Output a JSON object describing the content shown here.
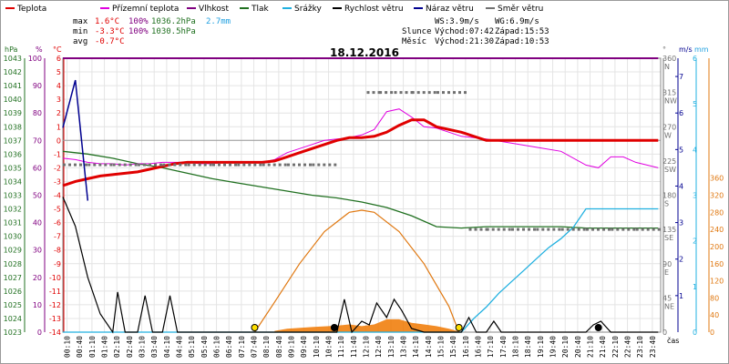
{
  "legend": [
    {
      "label": "Teplota",
      "color": "#e00000"
    },
    {
      "label": "Přízemní teplota",
      "color": "#e000e0"
    },
    {
      "label": "Vlhkost",
      "color": "#800080"
    },
    {
      "label": "Tlak",
      "color": "#207020"
    },
    {
      "label": "Srážky",
      "color": "#20b0e0"
    },
    {
      "label": "Rychlost větru",
      "color": "#000000"
    },
    {
      "label": "Náraz větru",
      "color": "#000090"
    },
    {
      "label": "Směr větru",
      "color": "#707070"
    }
  ],
  "stats": {
    "max_label": "max",
    "max_temp": "1.6°C",
    "max_hum": "100%",
    "max_press": "1036.2hPa",
    "precip": "2.7mm",
    "min_label": "min",
    "min_temp": "-3.3°C",
    "min_hum": "100%",
    "min_press": "1030.5hPa",
    "avg_label": "avg",
    "avg_temp": "-0.7°C"
  },
  "wind_info": {
    "ws": "WS:3.9m/s",
    "wg": "WG:6.9m/s"
  },
  "sun": {
    "label": "Slunce",
    "rise": "Východ:07:42",
    "set": "Západ:15:53"
  },
  "moon": {
    "label": "Měsíc",
    "rise": "Východ:21:30",
    "set": "Západ:10:53"
  },
  "colors": {
    "temp": "#e00000",
    "ground": "#e000e0",
    "hum": "#800080",
    "press": "#207020",
    "precip": "#20b0e0",
    "wind": "#000000",
    "gust": "#000090",
    "dir": "#707070",
    "sun": "#e07810",
    "sunfill": "#f07800"
  },
  "chart_data": {
    "type": "line",
    "title": "18.12.2016",
    "xlabel": "čas",
    "x_ticks": [
      "00:10",
      "00:40",
      "01:10",
      "01:40",
      "02:10",
      "02:40",
      "03:10",
      "03:40",
      "04:10",
      "04:40",
      "05:10",
      "05:40",
      "06:10",
      "06:40",
      "07:10",
      "07:40",
      "08:10",
      "08:40",
      "09:10",
      "09:40",
      "10:10",
      "10:40",
      "11:10",
      "11:40",
      "12:10",
      "12:40",
      "13:10",
      "13:40",
      "14:10",
      "14:40",
      "15:10",
      "15:40",
      "16:10",
      "16:40",
      "17:10",
      "17:40",
      "18:10",
      "18:40",
      "19:10",
      "19:40",
      "20:10",
      "20:40",
      "21:10",
      "21:40",
      "22:10",
      "22:40",
      "23:10",
      "23:40"
    ],
    "axes": {
      "hpa": {
        "title": "hPa",
        "ticks": [
          "1043",
          "1042",
          "1041",
          "1040",
          "1039",
          "1038",
          "1037",
          "1036",
          "1035",
          "1034",
          "1033",
          "1032",
          "1031",
          "1030",
          "1029",
          "1028",
          "1027",
          "1026",
          "1025",
          "1024",
          "1023"
        ],
        "range": [
          1023,
          1043
        ]
      },
      "pct": {
        "title": "%",
        "ticks": [
          "100",
          "90",
          "80",
          "70",
          "60",
          "50",
          "40",
          "30",
          "20",
          "10",
          "0"
        ],
        "range": [
          0,
          100
        ]
      },
      "celsius": {
        "title": "°C",
        "ticks": [
          "6",
          "5",
          "4",
          "3",
          "2",
          "1",
          "0",
          "-1",
          "-2",
          "-3",
          "-4",
          "-5",
          "-6",
          "-7",
          "-8",
          "-9",
          "-10",
          "-11",
          "-12",
          "-13",
          "-14"
        ],
        "range": [
          -14,
          6
        ]
      },
      "direction": {
        "title": "°",
        "ticks": [
          "360",
          "315",
          "270",
          "225",
          "180",
          "135",
          "90",
          "45",
          "0"
        ],
        "compass": [
          "N",
          "NW",
          "W",
          "SW",
          "S",
          "SE",
          "E",
          "NE"
        ],
        "range": [
          0,
          360
        ]
      },
      "ms": {
        "title": "m/s",
        "ticks": [
          "7",
          "6",
          "5",
          "4",
          "3",
          "2",
          "1"
        ],
        "range": [
          0,
          7.5
        ]
      },
      "mm": {
        "title": "mm",
        "ticks": [
          "6",
          "5",
          "4",
          "3",
          "2",
          "1",
          "0"
        ],
        "range": [
          0,
          6
        ]
      },
      "radiation": {
        "ticks": [
          "360",
          "320",
          "280",
          "240",
          "200",
          "160",
          "120",
          "80",
          "40",
          "0"
        ],
        "range": [
          0,
          360
        ]
      }
    },
    "series": [
      {
        "name": "Teplota",
        "unit": "°C",
        "x": [
          0,
          0.5,
          1,
          1.5,
          2,
          2.5,
          3,
          3.5,
          4,
          4.5,
          5,
          5.5,
          6,
          6.5,
          7,
          7.5,
          8,
          8.5,
          9,
          9.5,
          10,
          10.5,
          11,
          11.5,
          12,
          12.5,
          13,
          13.5,
          14,
          14.5,
          15,
          15.5,
          16,
          16.5,
          17,
          18,
          19,
          20,
          21,
          22,
          23,
          23.9
        ],
        "values": [
          -3.3,
          -3.0,
          -2.8,
          -2.6,
          -2.5,
          -2.4,
          -2.3,
          -2.1,
          -1.9,
          -1.7,
          -1.6,
          -1.6,
          -1.6,
          -1.6,
          -1.6,
          -1.6,
          -1.6,
          -1.5,
          -1.2,
          -0.9,
          -0.6,
          -0.3,
          0.0,
          0.2,
          0.2,
          0.3,
          0.6,
          1.1,
          1.5,
          1.5,
          1.0,
          0.8,
          0.6,
          0.3,
          0.0,
          0.0,
          0.0,
          0.0,
          0.0,
          0.0,
          0.0,
          0.0
        ]
      },
      {
        "name": "Přízemní teplota",
        "unit": "°C",
        "x": [
          0,
          0.5,
          1,
          1.5,
          2,
          2.5,
          3,
          3.5,
          4,
          4.5,
          5,
          5.5,
          6,
          6.5,
          7,
          7.5,
          8,
          8.5,
          9,
          9.5,
          10,
          10.5,
          11,
          11.5,
          12,
          12.5,
          13,
          13.5,
          14,
          14.5,
          15,
          15.5,
          16,
          16.5,
          17,
          18,
          19,
          20,
          21,
          21.5,
          22,
          22.5,
          23,
          23.9
        ],
        "values": [
          -1.3,
          -1.4,
          -1.6,
          -1.7,
          -1.7,
          -1.8,
          -1.7,
          -1.7,
          -1.6,
          -1.6,
          -1.6,
          -1.7,
          -1.7,
          -1.6,
          -1.6,
          -1.6,
          -1.6,
          -1.4,
          -0.9,
          -0.6,
          -0.3,
          0.0,
          0.1,
          0.2,
          0.4,
          0.8,
          2.1,
          2.3,
          1.7,
          1.0,
          0.9,
          0.6,
          0.3,
          0.2,
          0.1,
          -0.2,
          -0.5,
          -0.8,
          -1.8,
          -2.0,
          -1.2,
          -1.2,
          -1.6,
          -2.0
        ]
      },
      {
        "name": "Vlhkost",
        "unit": "%",
        "x": [
          0,
          23.9
        ],
        "values": [
          100,
          100
        ]
      },
      {
        "name": "Tlak",
        "unit": "hPa",
        "x": [
          0,
          1,
          2,
          3,
          4,
          5,
          6,
          7,
          8,
          9,
          10,
          11,
          12,
          13,
          14,
          15,
          16,
          17,
          18,
          19,
          20,
          21,
          22,
          23,
          23.9
        ],
        "values": [
          1036.2,
          1036.0,
          1035.7,
          1035.3,
          1035.0,
          1034.6,
          1034.2,
          1033.9,
          1033.6,
          1033.3,
          1033.0,
          1032.8,
          1032.5,
          1032.1,
          1031.5,
          1030.7,
          1030.6,
          1030.7,
          1030.7,
          1030.7,
          1030.7,
          1030.6,
          1030.6,
          1030.6,
          1030.6
        ]
      },
      {
        "name": "Srážky",
        "unit": "mm",
        "x": [
          0,
          16,
          16.5,
          17,
          17.5,
          18,
          18.5,
          19,
          19.5,
          20,
          20.5,
          21,
          21.5,
          22,
          23,
          23.9
        ],
        "values": [
          0,
          0,
          0.3,
          0.55,
          0.85,
          1.1,
          1.35,
          1.6,
          1.85,
          2.05,
          2.3,
          2.7,
          2.7,
          2.7,
          2.7,
          2.7
        ]
      },
      {
        "name": "Rychlost větru",
        "unit": "m/s",
        "x": [
          0,
          0.5,
          1,
          1.5,
          2,
          2.2,
          2.5,
          3,
          3.3,
          3.6,
          4,
          4.3,
          4.6,
          5,
          6,
          7,
          8,
          9,
          10,
          10.5,
          11,
          11.3,
          11.6,
          12,
          12.3,
          12.6,
          13,
          13.3,
          13.6,
          14,
          14.5,
          15,
          16,
          16.3,
          16.6,
          17,
          17.3,
          17.6,
          18,
          19,
          20,
          21,
          21.3,
          21.6,
          22,
          23,
          23.9
        ],
        "values": [
          3.7,
          2.9,
          1.5,
          0.5,
          0,
          1.1,
          0,
          0,
          1.0,
          0,
          0,
          1.0,
          0,
          0,
          0,
          0,
          0,
          0,
          0,
          0,
          0,
          0.9,
          0,
          0.3,
          0.2,
          0.8,
          0.4,
          0.9,
          0.6,
          0.1,
          0,
          0,
          0,
          0.4,
          0,
          0,
          0.3,
          0,
          0,
          0,
          0,
          0,
          0.2,
          0.3,
          0,
          0,
          0
        ]
      },
      {
        "name": "Náraz větru",
        "unit": "m/s",
        "x": [
          0,
          0.5,
          1
        ],
        "values": [
          5.6,
          6.9,
          3.6
        ]
      },
      {
        "name": "Směr větru",
        "unit": "°",
        "x": [
          0,
          1,
          2,
          3,
          4,
          5,
          6,
          7,
          8,
          9,
          10,
          11,
          12,
          12.2,
          12.7,
          13.3,
          14,
          15,
          16.3,
          17,
          18,
          19,
          20,
          21,
          22,
          23,
          23.9
        ],
        "values": [
          220,
          220,
          220,
          220,
          220,
          220,
          220,
          220,
          220,
          220,
          220,
          null,
          null,
          315,
          315,
          315,
          315,
          315,
          135,
          135,
          135,
          135,
          135,
          135,
          135,
          135,
          135
        ]
      }
    ],
    "solar_curve": {
      "name": "Sluneční záření",
      "x": [
        7.7,
        8.5,
        9.5,
        10.5,
        11.5,
        12.0,
        12.5,
        13.5,
        14.5,
        15.5,
        15.9
      ],
      "values": [
        0,
        70,
        160,
        235,
        280,
        285,
        280,
        235,
        160,
        60,
        0
      ]
    },
    "solar_actual": {
      "x": [
        8.5,
        9,
        10,
        11,
        11.5,
        12,
        12.5,
        13,
        13.5,
        14,
        14.5,
        15,
        15.5,
        15.9
      ],
      "values": [
        3,
        8,
        12,
        15,
        18,
        14,
        18,
        30,
        30,
        22,
        18,
        14,
        8,
        2
      ]
    },
    "markers": [
      {
        "label": "sunrise",
        "x": 7.7
      },
      {
        "label": "sunset",
        "x": 15.9
      },
      {
        "label": "moonset",
        "x": 10.9
      },
      {
        "label": "moonrise",
        "x": 21.5
      }
    ],
    "grid": true,
    "legend": "top-left"
  }
}
